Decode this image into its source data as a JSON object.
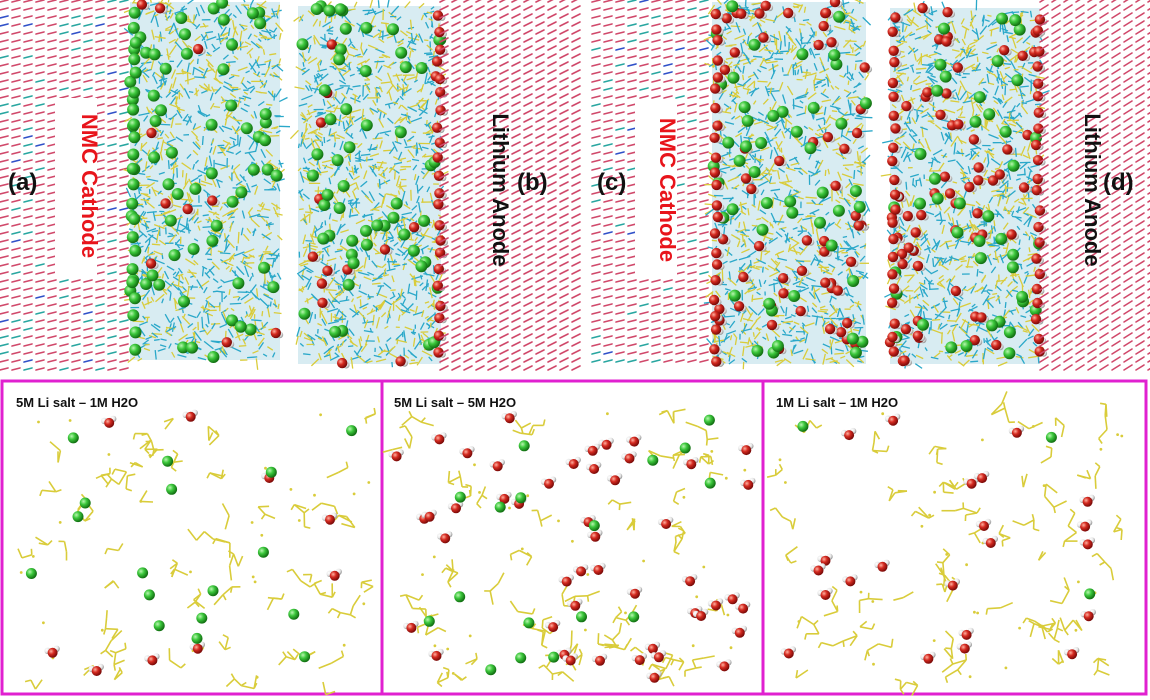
{
  "figure": {
    "panels": [
      {
        "tag": "(a)",
        "electrode": "NMC Cathode",
        "electrode_color": "#e8141b"
      },
      {
        "tag": "(b)",
        "electrode": "Lithium Anode",
        "electrode_color": "#111111"
      },
      {
        "tag": "(c)",
        "electrode": "NMC Cathode",
        "electrode_color": "#e8141b"
      },
      {
        "tag": "(d)",
        "electrode": "Lithium Anode",
        "electrode_color": "#111111"
      }
    ],
    "zoom_insets": [
      {
        "title": "5M Li salt – 1M H2O",
        "water_level": "low",
        "li_level": "medium"
      },
      {
        "title": "5M Li salt – 5M H2O",
        "water_level": "high",
        "li_level": "medium"
      },
      {
        "title": "1M Li salt – 1M H2O",
        "water_level": "medium",
        "li_level": "low"
      }
    ],
    "colors": {
      "inset_border": "#e020d0",
      "lithium": "#2fbf2f",
      "oxygen": "#d42020",
      "hydrogen": "#e8e8e8",
      "solvent_frame": "#d9cc3a",
      "solvent_network": "#2aa8c9",
      "lattice_pink": "#d0486a",
      "lattice_teal": "#28a6a0",
      "lattice_blue": "#3050c8"
    }
  }
}
